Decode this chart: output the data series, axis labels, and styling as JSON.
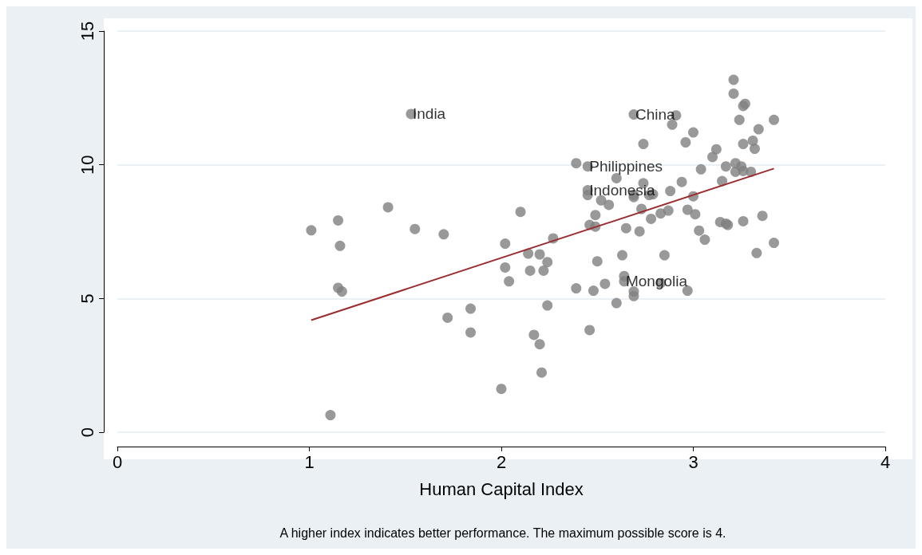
{
  "chart_data": {
    "type": "scatter",
    "xlabel": "Human Capital Index",
    "xlim": [
      0,
      4
    ],
    "xticks": [
      0,
      1,
      2,
      3,
      4
    ],
    "ylim": [
      0,
      15
    ],
    "yticks": [
      0,
      5,
      10,
      15
    ],
    "grid": "y",
    "marker": "circle",
    "annotations": [
      {
        "text": "India",
        "x": 1.53,
        "y": 11.9
      },
      {
        "text": "China",
        "x": 2.69,
        "y": 11.88
      },
      {
        "text": "Philippines",
        "x": 2.45,
        "y": 9.94
      },
      {
        "text": "Indonesia",
        "x": 2.45,
        "y": 9.05
      },
      {
        "text": "Mongolia",
        "x": 2.64,
        "y": 5.64
      },
      "A higher index indicates better performance. The maximum possible score is 4."
    ],
    "series": [
      {
        "color": "#808080",
        "x": [
          1.01,
          1.15,
          1.16,
          1.15,
          1.17,
          1.11,
          1.41,
          1.53,
          1.55,
          1.7,
          1.72,
          1.84,
          1.84,
          2.0,
          2.02,
          2.02,
          2.04,
          2.1,
          2.14,
          2.15,
          2.2,
          2.22,
          2.24,
          2.27,
          2.17,
          2.2,
          2.21,
          2.24,
          2.39,
          2.45,
          2.45,
          2.45,
          2.39,
          2.46,
          2.49,
          2.49,
          2.46,
          2.5,
          2.48,
          2.52,
          2.56,
          2.54,
          2.6,
          2.6,
          2.69,
          2.74,
          2.74,
          2.69,
          2.69,
          2.77,
          2.79,
          2.73,
          2.65,
          2.72,
          2.78,
          2.83,
          2.87,
          2.63,
          2.85,
          2.64,
          2.64,
          2.69,
          2.69,
          2.83,
          2.97,
          2.88,
          2.91,
          2.89,
          2.96,
          3.0,
          2.94,
          3.0,
          2.97,
          3.01,
          3.03,
          3.06,
          3.04,
          3.1,
          3.12,
          3.21,
          3.21,
          3.26,
          3.27,
          3.24,
          3.42,
          3.34,
          3.31,
          3.32,
          3.26,
          3.17,
          3.22,
          3.25,
          3.22,
          3.26,
          3.3,
          3.15,
          3.14,
          3.17,
          3.18,
          3.26,
          3.36,
          3.42,
          3.33
        ],
        "values": [
          7.55,
          7.92,
          6.97,
          5.4,
          5.26,
          0.64,
          8.41,
          11.9,
          7.6,
          7.4,
          4.28,
          3.73,
          4.62,
          1.62,
          7.05,
          6.16,
          5.64,
          8.24,
          6.68,
          6.04,
          6.65,
          6.04,
          6.36,
          7.25,
          3.64,
          3.29,
          2.23,
          4.74,
          10.06,
          9.94,
          9.05,
          8.87,
          5.38,
          7.75,
          7.69,
          8.12,
          3.82,
          6.39,
          5.29,
          8.67,
          8.5,
          5.55,
          4.83,
          9.5,
          11.88,
          10.78,
          9.31,
          8.87,
          8.79,
          8.87,
          8.9,
          8.35,
          7.63,
          7.51,
          7.98,
          8.18,
          8.29,
          6.62,
          6.62,
          5.84,
          5.64,
          5.26,
          5.09,
          5.58,
          5.29,
          9.02,
          11.85,
          11.5,
          10.84,
          11.21,
          9.36,
          8.82,
          8.32,
          8.15,
          7.54,
          7.2,
          9.83,
          10.29,
          10.58,
          13.18,
          12.66,
          12.2,
          12.28,
          11.68,
          11.68,
          11.33,
          10.9,
          10.6,
          10.78,
          9.94,
          10.06,
          9.94,
          9.74,
          9.77,
          9.74,
          9.39,
          7.86,
          7.8,
          7.75,
          7.89,
          8.09,
          7.08,
          6.7
        ]
      },
      {
        "type": "line",
        "color": "#9b2d30",
        "marker": "none",
        "line_style": "solid",
        "x": [
          1.01,
          3.42
        ],
        "values": [
          4.19,
          9.86
        ]
      }
    ]
  }
}
